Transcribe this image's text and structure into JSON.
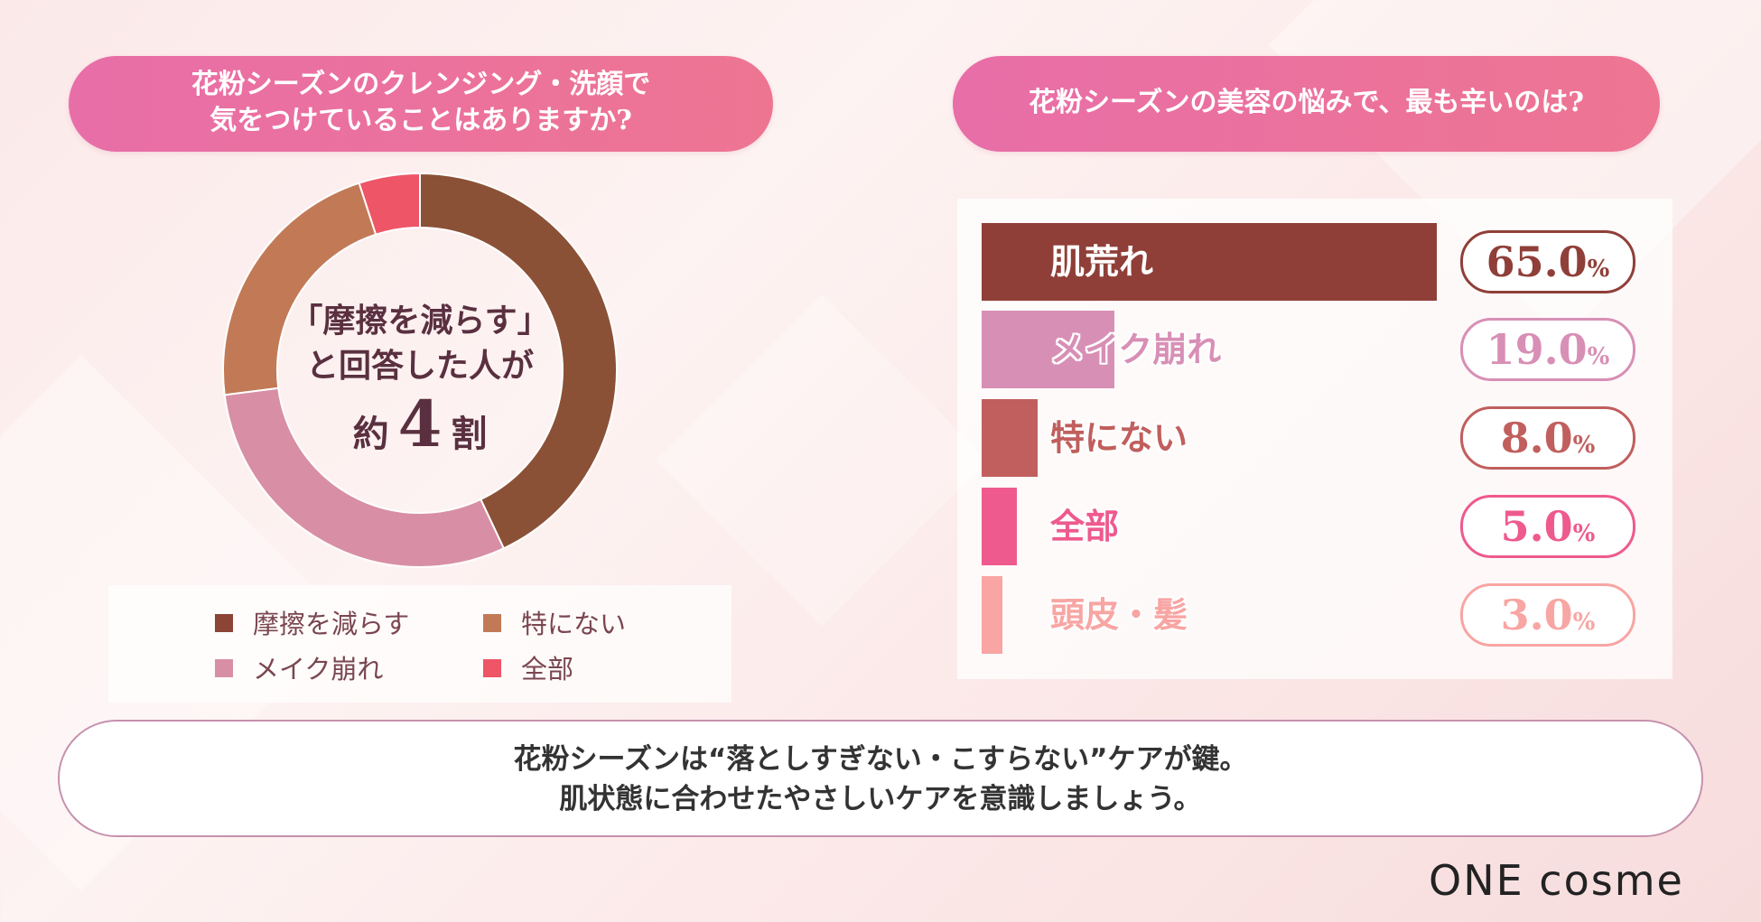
{
  "chart_data": [
    {
      "type": "pie",
      "title": "花粉シーズンのクレンジング・洗顔で気をつけていることはありますか?",
      "title_lines": [
        "花粉シーズンのクレンジング・洗顔で",
        "気をつけていることはありますか?"
      ],
      "center_text": {
        "line1": "「摩擦を減らす」",
        "line2": "と回答した人が",
        "prefix": "約",
        "big": "4",
        "suffix": "割"
      },
      "slices": [
        {
          "label": "摩擦を減らす",
          "value": 43,
          "color": "#8b5136"
        },
        {
          "label": "メイク崩れ",
          "value": 30,
          "color": "#d88fa5"
        },
        {
          "label": "特にない",
          "value": 22,
          "color": "#c27a56"
        },
        {
          "label": "全部",
          "value": 5,
          "color": "#ee5566"
        }
      ],
      "legend": [
        "摩擦を減らす",
        "特にない",
        "メイク崩れ",
        "全部"
      ]
    },
    {
      "type": "bar",
      "orientation": "horizontal",
      "title": "花粉シーズンの美容の悩みで、最も辛いのは?",
      "categories": [
        "肌荒れ",
        "メイク崩れ",
        "特にない",
        "全部",
        "頭皮・髪"
      ],
      "values": [
        65.0,
        19.0,
        8.0,
        5.0,
        3.0
      ],
      "value_labels": [
        "65.0",
        "19.0",
        "8.0",
        "5.0",
        "3.0"
      ],
      "unit": "%",
      "colors": [
        "#8f3f38",
        "#d88fb5",
        "#c05f5d",
        "#ee5a8e",
        "#f8a5a3"
      ],
      "xlim": [
        0,
        65
      ]
    }
  ],
  "message": {
    "line1": "花粉シーズンは“落としすぎない・こすらない”ケアが鍵。",
    "line2": "肌状態に合わせたやさしいケアを意識しましょう。"
  },
  "logo": "ONE cosme"
}
